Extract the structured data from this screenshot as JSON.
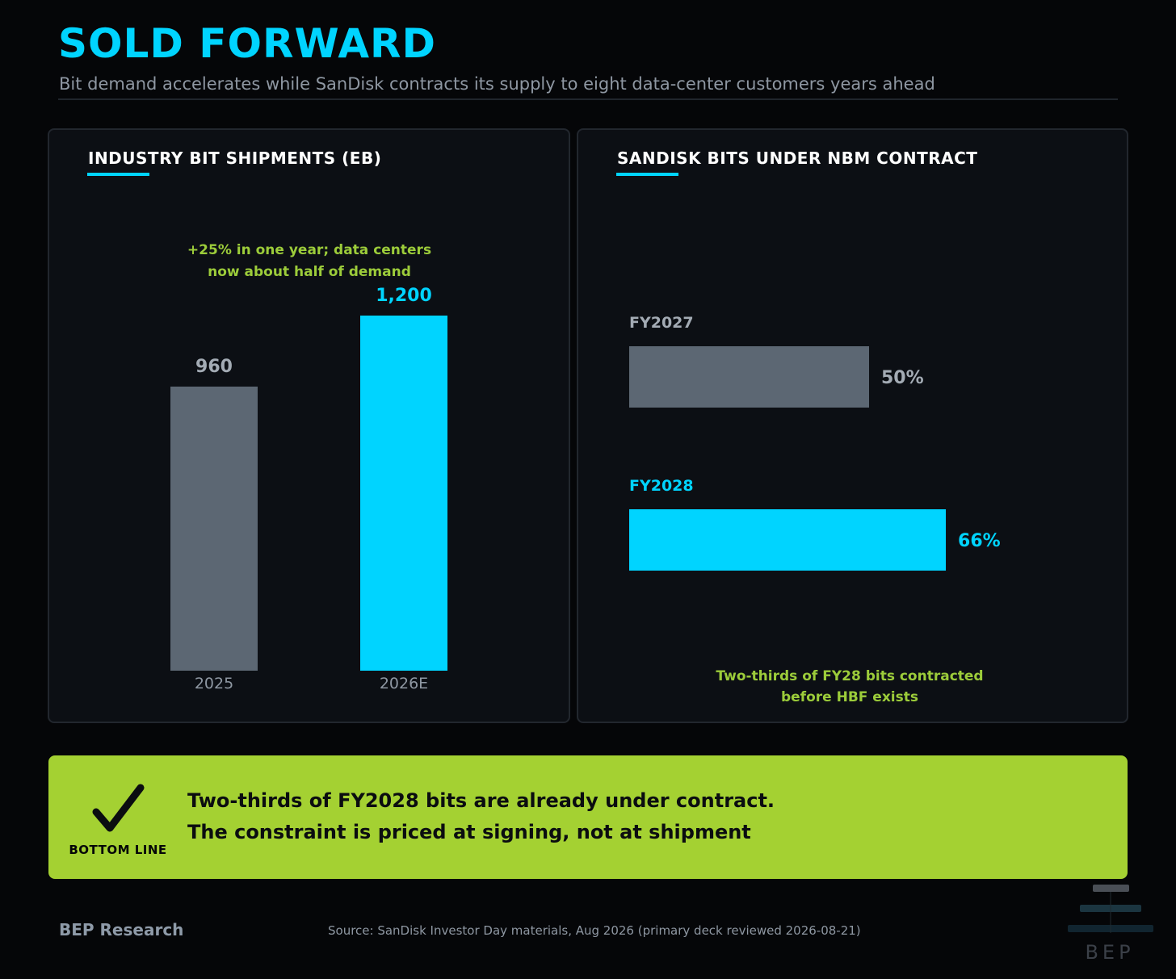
{
  "header": {
    "title": "SOLD FORWARD",
    "subtitle": "Bit demand accelerates while SanDisk contracts its supply to eight data-center customers years ahead"
  },
  "colors": {
    "accent": "#00d4ff",
    "muted_bar": "#5c6773",
    "annotation_green": "#9ccc3a",
    "banner_bg": "#a4d132",
    "background": "#050608",
    "panel_bg": "#0c0f14"
  },
  "chart_data": [
    {
      "type": "bar",
      "title": "INDUSTRY BIT SHIPMENTS (EB)",
      "categories": [
        "2025",
        "2026E"
      ],
      "values": [
        960,
        1200
      ],
      "value_labels": [
        "960",
        "1,200"
      ],
      "ylim": [
        0,
        1200
      ],
      "grid": false,
      "annotation": "+25% in one year; data centers\nnow about half of demand"
    },
    {
      "type": "bar",
      "orientation": "horizontal",
      "title": "SANDISK BITS UNDER NBM CONTRACT",
      "categories": [
        "FY2027",
        "FY2028"
      ],
      "values": [
        50,
        66
      ],
      "value_labels": [
        "50%",
        "66%"
      ],
      "xlim": [
        0,
        100
      ],
      "grid": false,
      "annotation": "Two-thirds of FY28 bits contracted\nbefore HBF exists"
    }
  ],
  "banner": {
    "icon": "checkmark-icon",
    "label": "BOTTOM LINE",
    "line1": "Two-thirds of FY2028 bits are already under contract.",
    "line2": "The constraint is priced at signing, not at shipment"
  },
  "footer": {
    "brand": "BEP Research",
    "source": "Source: SanDisk Investor Day materials, Aug 2026 (primary deck reviewed 2026-08-21)",
    "logo_text": "BEP"
  }
}
